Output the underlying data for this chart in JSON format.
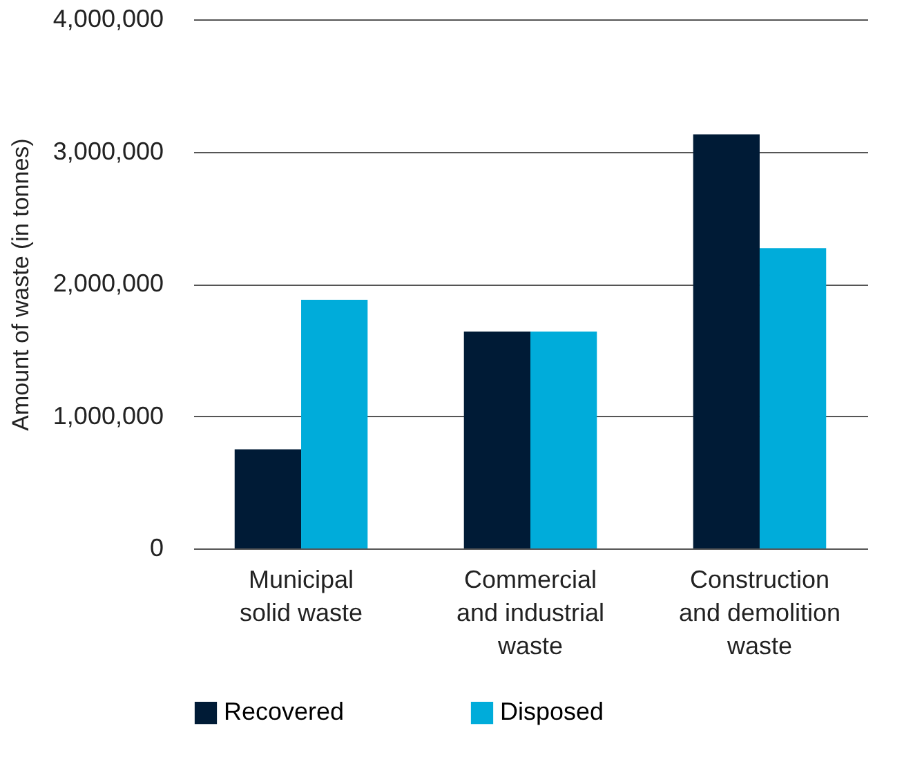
{
  "chart_data": {
    "type": "bar",
    "ylabel": "Amount of waste (in tonnes)",
    "categories": [
      "Municipal\nsolid waste",
      "Commercial\nand industrial\nwaste",
      "Construction\nand demolition\nwaste"
    ],
    "series": [
      {
        "name": "Recovered",
        "color": "#001b36",
        "values": [
          750000,
          1640000,
          3130000
        ]
      },
      {
        "name": "Disposed",
        "color": "#00acda",
        "values": [
          1880000,
          1640000,
          2270000
        ]
      }
    ],
    "ylim": [
      0,
      4000000
    ],
    "yticks": [
      0,
      {
        "value": 1000000,
        "label": "1,000,000"
      },
      {
        "value": 2000000,
        "label": "2,000,000"
      },
      {
        "value": 3000000,
        "label": "3,000,000"
      },
      {
        "value": 4000000,
        "label": "4,000,000"
      }
    ],
    "grid": "y",
    "legend": "bottom"
  }
}
